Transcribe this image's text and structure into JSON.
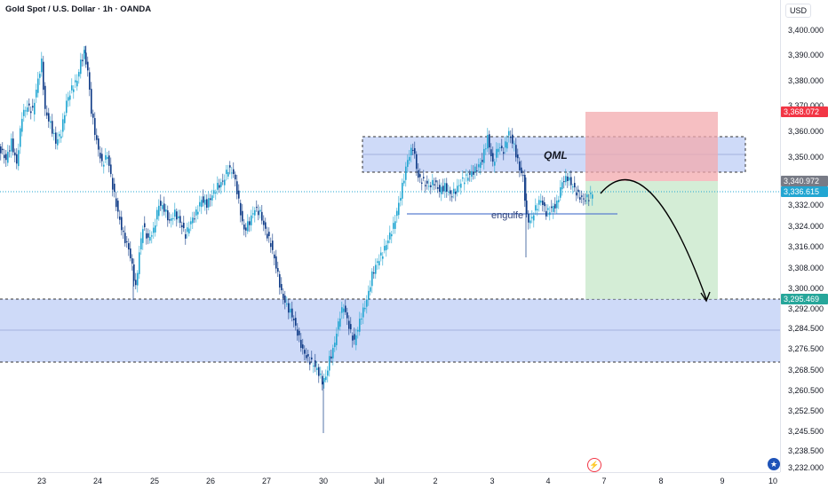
{
  "header": {
    "symbol_title": "Gold Spot / U.S. Dollar · 1h · OANDA",
    "currency": "USD"
  },
  "price_axis": {
    "ticks": [
      "3,400.000",
      "3,390.000",
      "3,380.000",
      "3,370.000",
      "3,360.000",
      "3,350.000",
      "3,340.000",
      "3,332.000",
      "3,324.000",
      "3,316.000",
      "3,308.000",
      "3,300.000",
      "3,292.000",
      "3,284.500",
      "3,276.500",
      "3,268.500",
      "3,260.500",
      "3,252.500",
      "3,245.500",
      "3,238.500",
      "3,232.000"
    ],
    "badges": [
      {
        "label": "3,368.072",
        "color": "#f23645"
      },
      {
        "label": "3,340.972",
        "color": "#787b86"
      },
      {
        "label": "3,336.615",
        "color": "#22a6d2"
      },
      {
        "label": "3,295.469",
        "color": "#26a69a"
      }
    ]
  },
  "time_axis": {
    "labels": [
      "23",
      "24",
      "25",
      "26",
      "27",
      "30",
      "Jul",
      "2",
      "3",
      "4",
      "7",
      "8",
      "9",
      "10"
    ]
  },
  "annotations": {
    "qml_label": "QML",
    "engulfing_label": "engulfe"
  },
  "icons": {
    "lightning": "lightning-icon",
    "flag": "us-flag-icon"
  },
  "colors": {
    "up": "#22a6d2",
    "down": "#0e3a86",
    "zone_fill": "#c5d4f7",
    "stop_fill": "#f6c3c7",
    "target_fill": "#d4eedb",
    "last_price": "#22a6d2"
  }
}
